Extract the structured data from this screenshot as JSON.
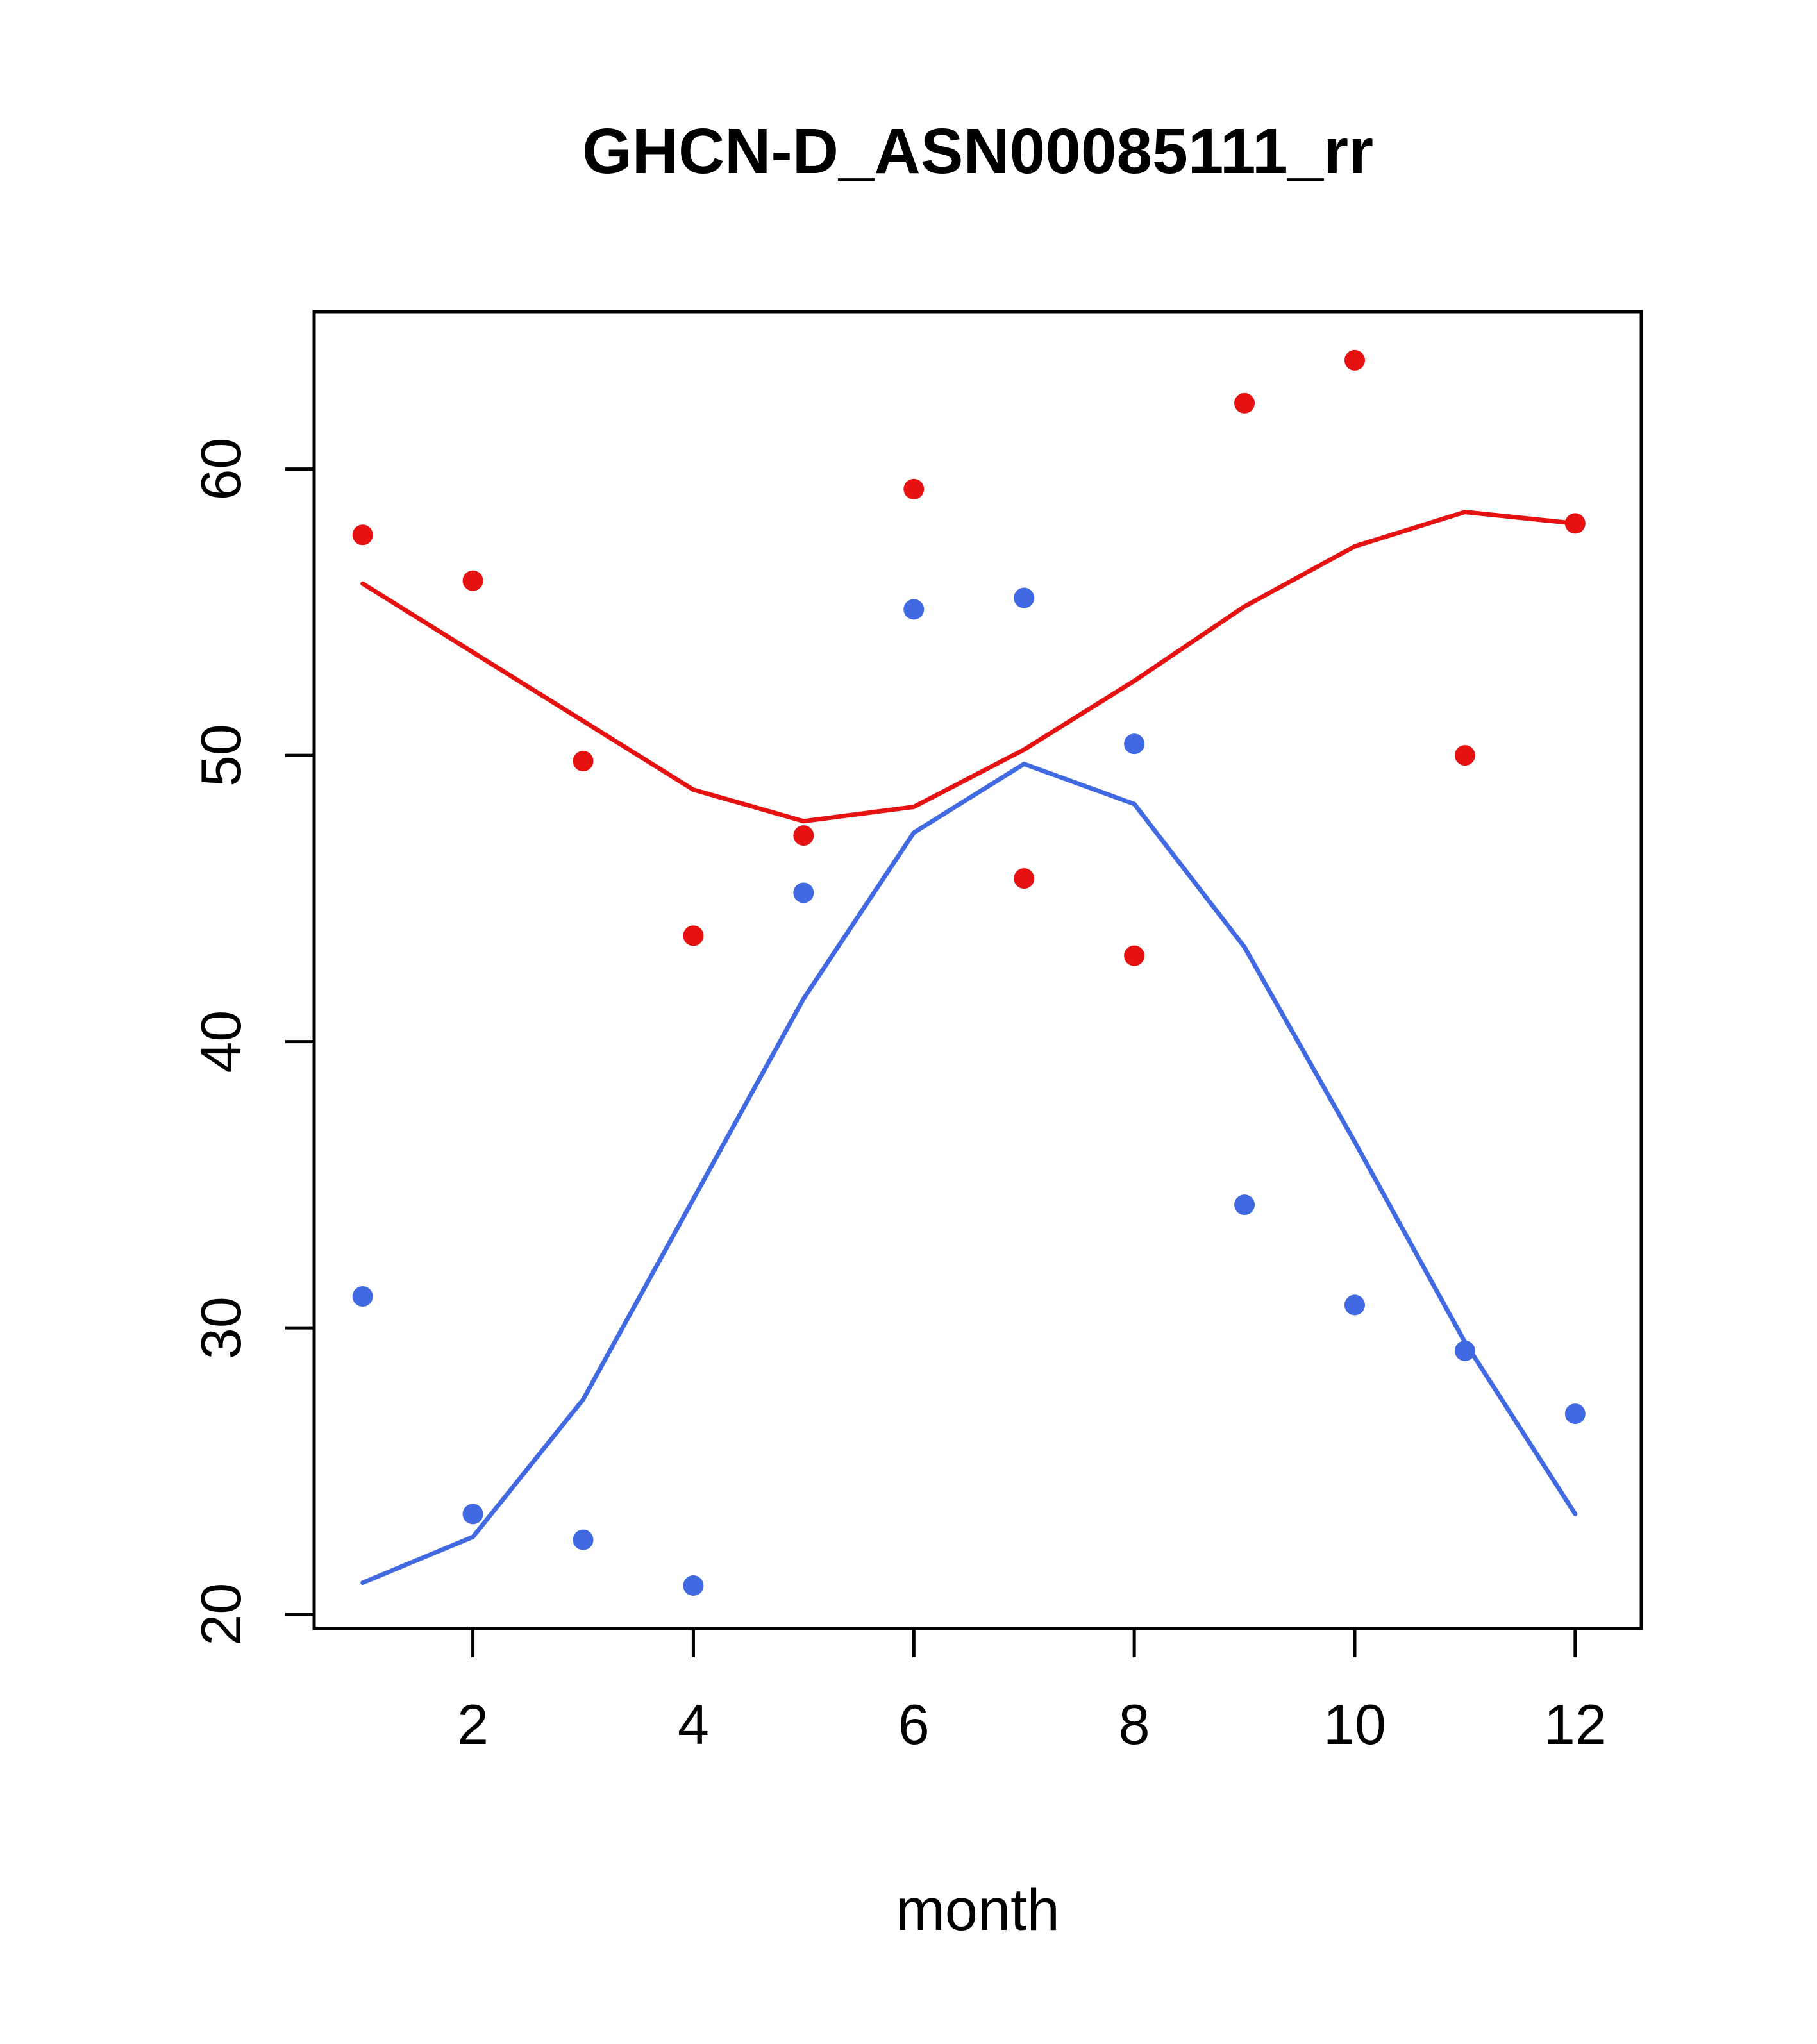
{
  "title": "GHCN-D_ASN00085111_rr",
  "chart_data": {
    "type": "scatter",
    "title": "GHCN-D_ASN00085111_rr",
    "xlabel": "month",
    "ylabel": "",
    "grid": false,
    "legend": "none",
    "x_ticks": [
      2,
      4,
      6,
      8,
      10,
      12
    ],
    "y_ticks": [
      20,
      30,
      40,
      50,
      60
    ],
    "xlim": [
      0.56,
      12.6
    ],
    "ylim": [
      19.5,
      65.5
    ],
    "months": [
      1,
      2,
      3,
      4,
      5,
      6,
      7,
      8,
      9,
      10,
      11,
      12
    ],
    "colors": {
      "red": "#e61212",
      "blue": "#4169e1"
    },
    "series": [
      {
        "name": "red-scatter",
        "type": "points",
        "color": "#e61212",
        "values": [
          57.7,
          56.1,
          49.8,
          43.7,
          47.2,
          59.3,
          45.7,
          43.0,
          62.3,
          63.8,
          50.0,
          58.1
        ]
      },
      {
        "name": "red-trend",
        "type": "line",
        "color": "#e61212",
        "values": [
          56.0,
          53.6,
          51.2,
          48.8,
          47.7,
          48.2,
          50.2,
          52.6,
          55.2,
          57.3,
          58.5,
          58.1
        ]
      },
      {
        "name": "blue-scatter",
        "type": "points",
        "color": "#4169e1",
        "values": [
          31.1,
          23.5,
          22.6,
          21.0,
          45.2,
          55.1,
          55.5,
          50.4,
          34.3,
          30.8,
          29.2,
          27.0
        ]
      },
      {
        "name": "blue-trend",
        "type": "line",
        "color": "#4169e1",
        "values": [
          21.1,
          22.7,
          27.5,
          34.5,
          41.5,
          47.3,
          49.7,
          48.3,
          43.3,
          36.5,
          29.5,
          23.5
        ]
      }
    ]
  }
}
